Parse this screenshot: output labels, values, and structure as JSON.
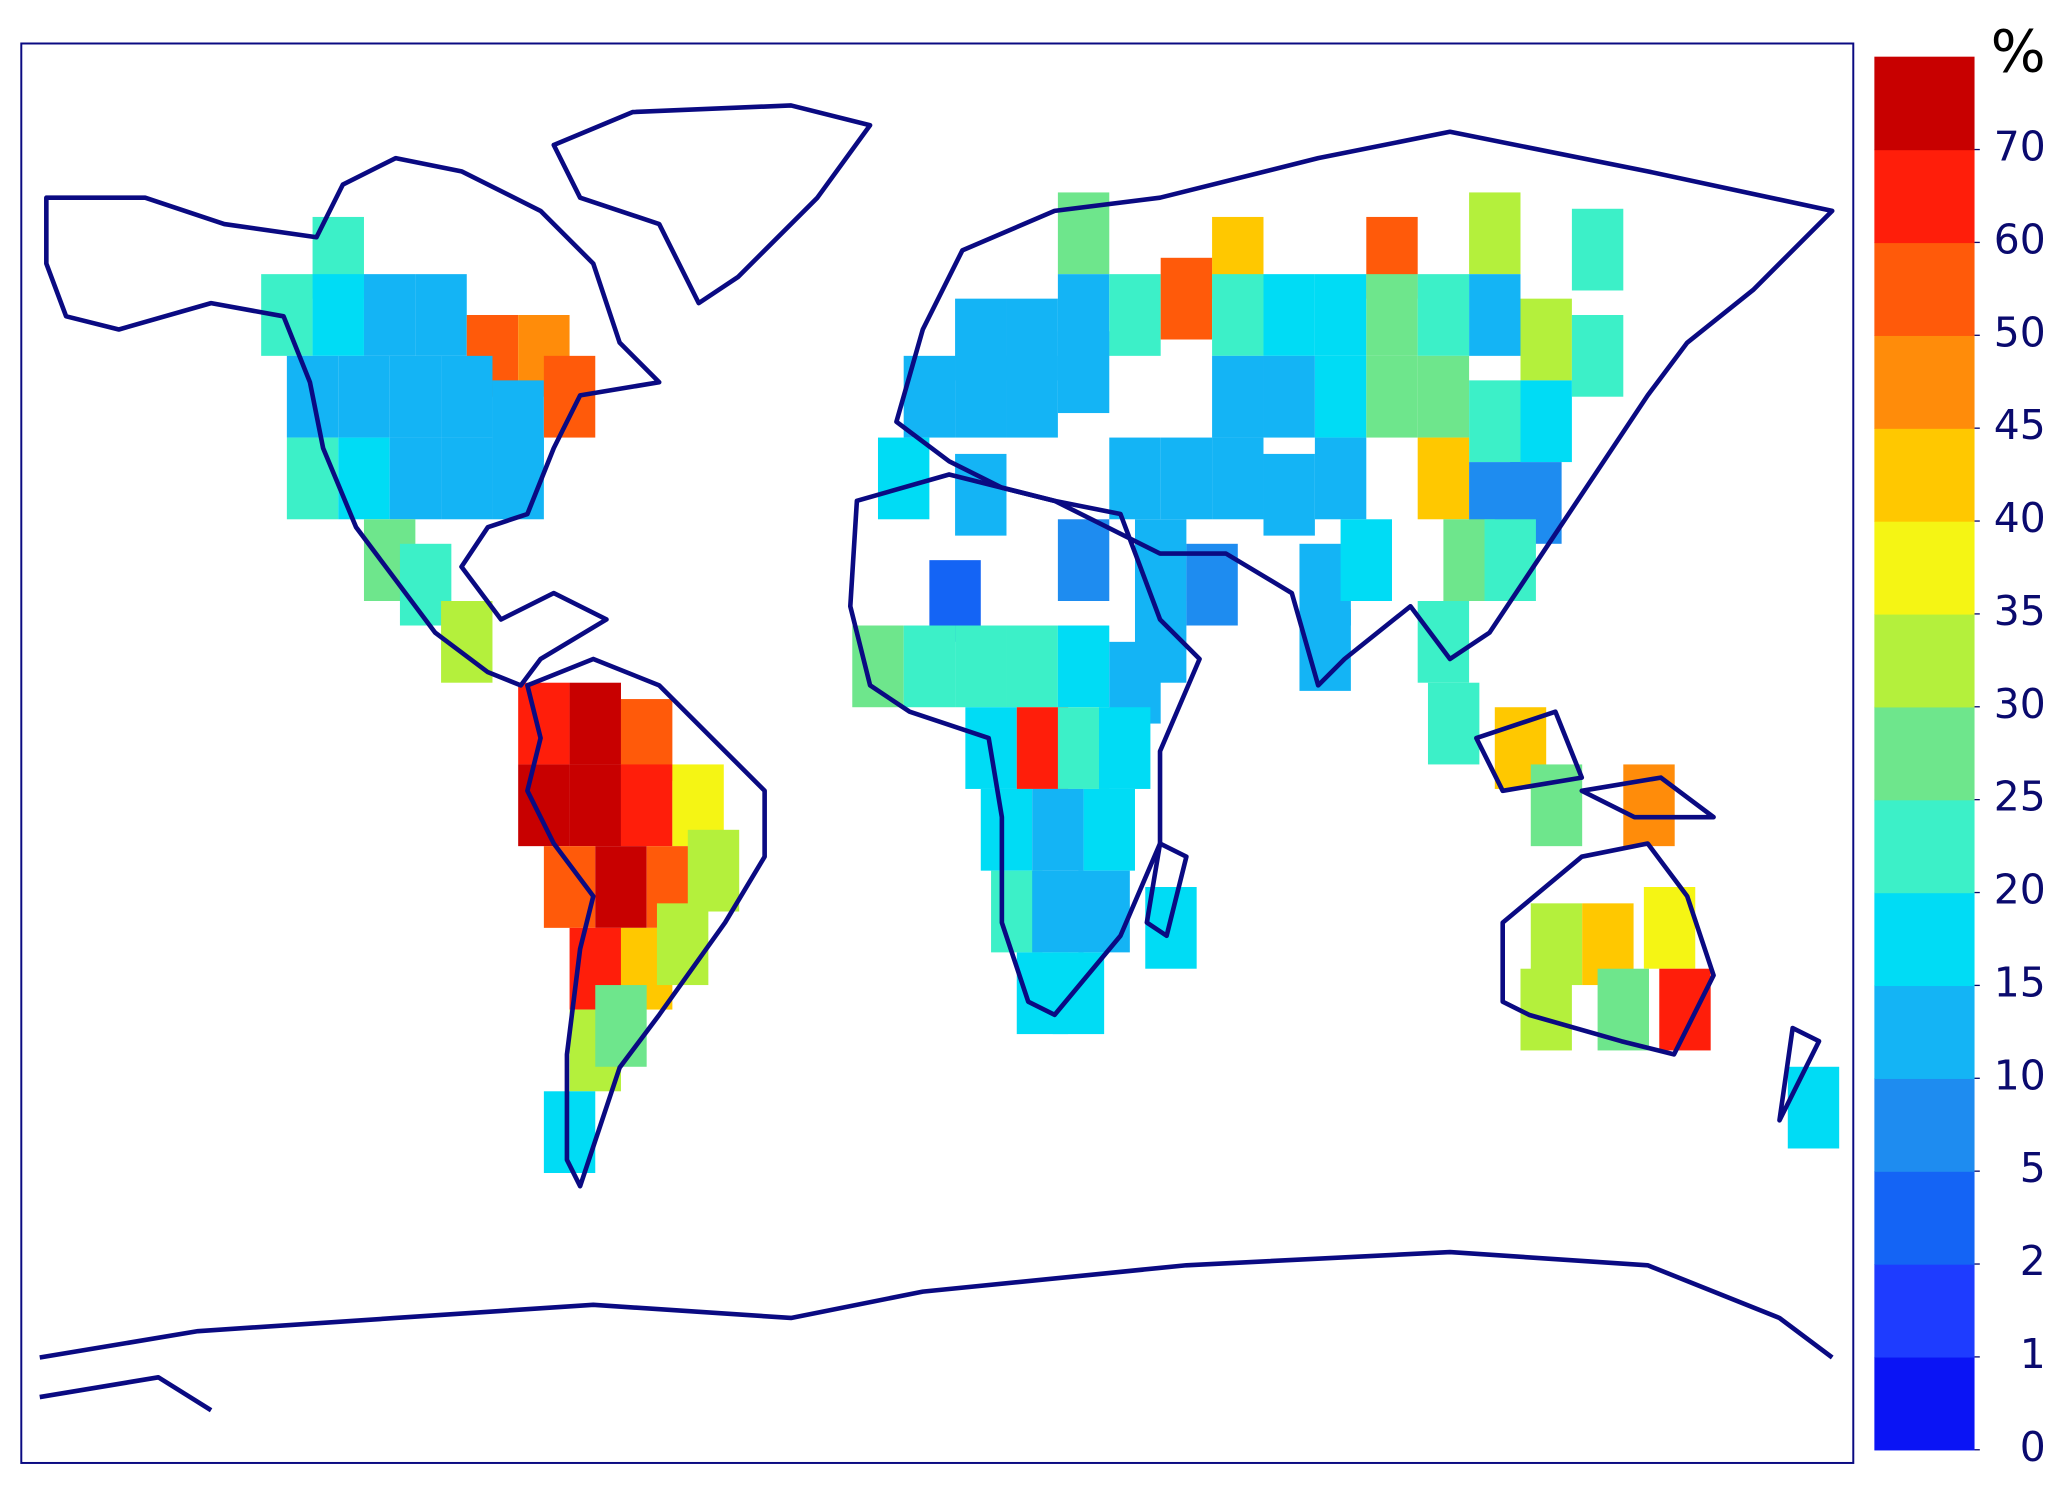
{
  "chart_data": {
    "type": "grid-map",
    "legend": {
      "unit": "%",
      "ticks": [
        0,
        1,
        2,
        5,
        10,
        15,
        20,
        25,
        30,
        35,
        40,
        45,
        50,
        60,
        70
      ],
      "colors": [
        "#0a14f5",
        "#1e3cff",
        "#1464f5",
        "#1e8cf0",
        "#14b4f5",
        "#00dcf5",
        "#3cf0c8",
        "#6ee68c",
        "#b4f03c",
        "#f5f514",
        "#ffc800",
        "#ff8c0a",
        "#ff5a0a",
        "#ff1e0a",
        "#c80000"
      ]
    },
    "cells": [
      {
        "lon": -115,
        "lat": 62,
        "value": 20
      },
      {
        "lon": -125,
        "lat": 55,
        "value": 20
      },
      {
        "lon": -115,
        "lat": 55,
        "value": 15
      },
      {
        "lon": -105,
        "lat": 55,
        "value": 10
      },
      {
        "lon": -95,
        "lat": 55,
        "value": 12
      },
      {
        "lon": -85,
        "lat": 50,
        "value": 50
      },
      {
        "lon": -75,
        "lat": 50,
        "value": 45
      },
      {
        "lon": -120,
        "lat": 45,
        "value": 12
      },
      {
        "lon": -110,
        "lat": 45,
        "value": 10
      },
      {
        "lon": -100,
        "lat": 45,
        "value": 10
      },
      {
        "lon": -90,
        "lat": 45,
        "value": 10
      },
      {
        "lon": -80,
        "lat": 42,
        "value": 12
      },
      {
        "lon": -70,
        "lat": 45,
        "value": 50
      },
      {
        "lon": -120,
        "lat": 35,
        "value": 20
      },
      {
        "lon": -110,
        "lat": 35,
        "value": 15
      },
      {
        "lon": -100,
        "lat": 35,
        "value": 12
      },
      {
        "lon": -90,
        "lat": 35,
        "value": 10
      },
      {
        "lon": -80,
        "lat": 35,
        "value": 12
      },
      {
        "lon": -105,
        "lat": 25,
        "value": 25
      },
      {
        "lon": -98,
        "lat": 22,
        "value": 20
      },
      {
        "lon": -90,
        "lat": 15,
        "value": 30
      },
      {
        "lon": -75,
        "lat": 5,
        "value": 60
      },
      {
        "lon": -65,
        "lat": 5,
        "value": 70
      },
      {
        "lon": -55,
        "lat": 3,
        "value": 55
      },
      {
        "lon": -75,
        "lat": -5,
        "value": 70
      },
      {
        "lon": -65,
        "lat": -5,
        "value": 70
      },
      {
        "lon": -55,
        "lat": -5,
        "value": 60
      },
      {
        "lon": -45,
        "lat": -5,
        "value": 35
      },
      {
        "lon": -70,
        "lat": -15,
        "value": 55
      },
      {
        "lon": -60,
        "lat": -15,
        "value": 70
      },
      {
        "lon": -50,
        "lat": -15,
        "value": 50
      },
      {
        "lon": -42,
        "lat": -13,
        "value": 30
      },
      {
        "lon": -65,
        "lat": -25,
        "value": 60
      },
      {
        "lon": -55,
        "lat": -25,
        "value": 40
      },
      {
        "lon": -48,
        "lat": -22,
        "value": 30
      },
      {
        "lon": -65,
        "lat": -35,
        "value": 30
      },
      {
        "lon": -60,
        "lat": -32,
        "value": 25
      },
      {
        "lon": -70,
        "lat": -45,
        "value": 15
      },
      {
        "lon": 30,
        "lat": 65,
        "value": 25
      },
      {
        "lon": 60,
        "lat": 62,
        "value": 40
      },
      {
        "lon": 90,
        "lat": 62,
        "value": 50
      },
      {
        "lon": 110,
        "lat": 65,
        "value": 30
      },
      {
        "lon": 130,
        "lat": 63,
        "value": 20
      },
      {
        "lon": 10,
        "lat": 52,
        "value": 10
      },
      {
        "lon": 20,
        "lat": 52,
        "value": 10
      },
      {
        "lon": 30,
        "lat": 55,
        "value": 12
      },
      {
        "lon": 40,
        "lat": 55,
        "value": 20
      },
      {
        "lon": 50,
        "lat": 57,
        "value": 55
      },
      {
        "lon": 60,
        "lat": 55,
        "value": 20
      },
      {
        "lon": 70,
        "lat": 55,
        "value": 15
      },
      {
        "lon": 80,
        "lat": 55,
        "value": 15
      },
      {
        "lon": 90,
        "lat": 55,
        "value": 25
      },
      {
        "lon": 100,
        "lat": 55,
        "value": 20
      },
      {
        "lon": 110,
        "lat": 55,
        "value": 10
      },
      {
        "lon": 120,
        "lat": 52,
        "value": 30
      },
      {
        "lon": 130,
        "lat": 50,
        "value": 20
      },
      {
        "lon": 0,
        "lat": 45,
        "value": 10
      },
      {
        "lon": 10,
        "lat": 45,
        "value": 10
      },
      {
        "lon": 20,
        "lat": 45,
        "value": 10
      },
      {
        "lon": 30,
        "lat": 48,
        "value": 10
      },
      {
        "lon": 60,
        "lat": 45,
        "value": 10
      },
      {
        "lon": 70,
        "lat": 45,
        "value": 12
      },
      {
        "lon": 80,
        "lat": 45,
        "value": 15
      },
      {
        "lon": 90,
        "lat": 45,
        "value": 25
      },
      {
        "lon": 100,
        "lat": 45,
        "value": 25
      },
      {
        "lon": 110,
        "lat": 42,
        "value": 20
      },
      {
        "lon": 120,
        "lat": 42,
        "value": 15
      },
      {
        "lon": -5,
        "lat": 35,
        "value": 15
      },
      {
        "lon": 10,
        "lat": 33,
        "value": 12
      },
      {
        "lon": 40,
        "lat": 35,
        "value": 10
      },
      {
        "lon": 50,
        "lat": 35,
        "value": 12
      },
      {
        "lon": 60,
        "lat": 35,
        "value": 10
      },
      {
        "lon": 70,
        "lat": 33,
        "value": 10
      },
      {
        "lon": 80,
        "lat": 35,
        "value": 10
      },
      {
        "lon": 100,
        "lat": 35,
        "value": 40
      },
      {
        "lon": 110,
        "lat": 32,
        "value": 5
      },
      {
        "lon": 118,
        "lat": 32,
        "value": 5
      },
      {
        "lon": 30,
        "lat": 25,
        "value": 5
      },
      {
        "lon": 45,
        "lat": 25,
        "value": 10
      },
      {
        "lon": 55,
        "lat": 22,
        "value": 5
      },
      {
        "lon": 77,
        "lat": 22,
        "value": 10
      },
      {
        "lon": 85,
        "lat": 25,
        "value": 15
      },
      {
        "lon": 105,
        "lat": 25,
        "value": 25
      },
      {
        "lon": 113,
        "lat": 25,
        "value": 20
      },
      {
        "lon": 45,
        "lat": 15,
        "value": 10
      },
      {
        "lon": 77,
        "lat": 14,
        "value": 10
      },
      {
        "lon": 100,
        "lat": 15,
        "value": 20
      },
      {
        "lon": 102,
        "lat": 5,
        "value": 20
      },
      {
        "lon": 115,
        "lat": 2,
        "value": 40
      },
      {
        "lon": 5,
        "lat": 20,
        "value": 2
      },
      {
        "lon": -10,
        "lat": 12,
        "value": 25
      },
      {
        "lon": 0,
        "lat": 12,
        "value": 20
      },
      {
        "lon": 10,
        "lat": 12,
        "value": 20
      },
      {
        "lon": 20,
        "lat": 12,
        "value": 20
      },
      {
        "lon": 30,
        "lat": 12,
        "value": 15
      },
      {
        "lon": 40,
        "lat": 10,
        "value": 12
      },
      {
        "lon": 12,
        "lat": 2,
        "value": 15
      },
      {
        "lon": 22,
        "lat": 2,
        "value": 65
      },
      {
        "lon": 30,
        "lat": 2,
        "value": 20
      },
      {
        "lon": 38,
        "lat": 2,
        "value": 15
      },
      {
        "lon": 15,
        "lat": -8,
        "value": 15
      },
      {
        "lon": 25,
        "lat": -8,
        "value": 12
      },
      {
        "lon": 35,
        "lat": -8,
        "value": 15
      },
      {
        "lon": 17,
        "lat": -18,
        "value": 20
      },
      {
        "lon": 25,
        "lat": -18,
        "value": 12
      },
      {
        "lon": 34,
        "lat": -18,
        "value": 12
      },
      {
        "lon": 22,
        "lat": -28,
        "value": 15
      },
      {
        "lon": 29,
        "lat": -28,
        "value": 15
      },
      {
        "lon": 47,
        "lat": -20,
        "value": 15
      },
      {
        "lon": 122,
        "lat": -5,
        "value": 25
      },
      {
        "lon": 140,
        "lat": -5,
        "value": 45
      },
      {
        "lon": 122,
        "lat": -22,
        "value": 30
      },
      {
        "lon": 132,
        "lat": -22,
        "value": 40
      },
      {
        "lon": 144,
        "lat": -20,
        "value": 35
      },
      {
        "lon": 120,
        "lat": -30,
        "value": 30
      },
      {
        "lon": 135,
        "lat": -30,
        "value": 25
      },
      {
        "lon": 147,
        "lat": -30,
        "value": 60
      },
      {
        "lon": 172,
        "lat": -42,
        "value": 15
      }
    ]
  }
}
